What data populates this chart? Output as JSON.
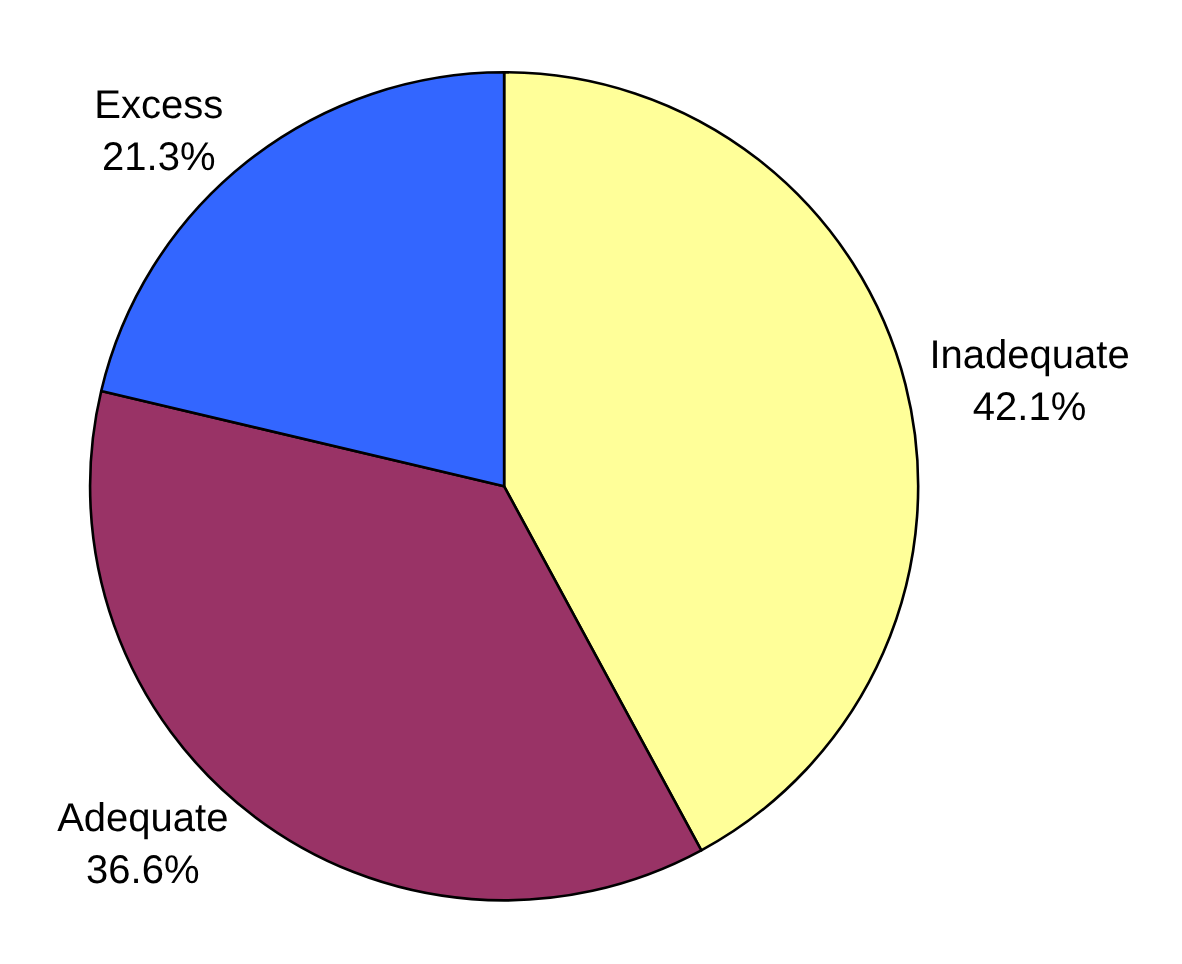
{
  "chart_data": {
    "type": "pie",
    "categories": [
      "Inadequate",
      "Adequate",
      "Excess"
    ],
    "values": [
      42.1,
      36.6,
      21.3
    ],
    "value_labels": [
      "42.1%",
      "36.6%",
      "21.3%"
    ],
    "colors": [
      "#ffff99",
      "#993366",
      "#3366ff"
    ],
    "legend": false
  }
}
